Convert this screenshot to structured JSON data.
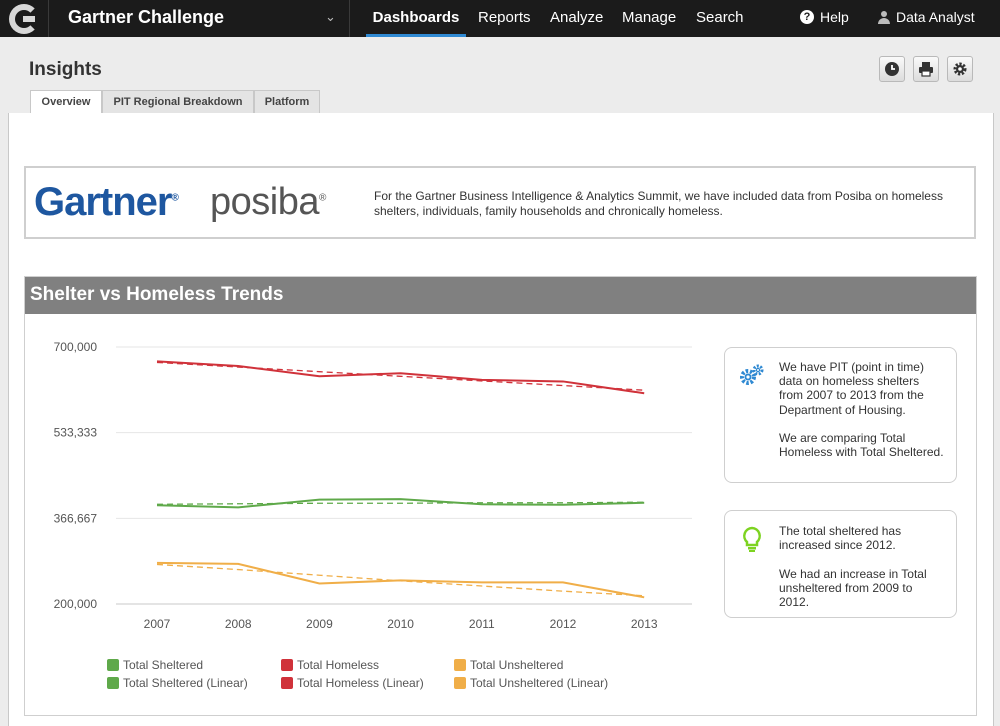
{
  "app": {
    "title": "Gartner Challenge",
    "nav": [
      "Dashboards",
      "Reports",
      "Analyze",
      "Manage",
      "Search"
    ],
    "active_nav": "Dashboards",
    "help_label": "Help",
    "user_label": "Data Analyst",
    "accent_color": "#2f89d2"
  },
  "page": {
    "title": "Insights",
    "toolbar_icons": [
      "clock-icon",
      "print-icon",
      "gear-icon"
    ]
  },
  "tabs": [
    {
      "label": "Overview",
      "active": true
    },
    {
      "label": "PIT Regional Breakdown",
      "active": false
    },
    {
      "label": "Platform",
      "active": false
    }
  ],
  "banner": {
    "gartner_logo": "Gartner",
    "posiba_logo": "posiba",
    "text": "For the Gartner Business Intelligence & Analytics Summit, we have included data from Posiba on homeless shelters, individuals, family households and chronically homeless."
  },
  "panel": {
    "title": "Shelter vs Homeless Trends"
  },
  "notes": [
    {
      "icon": "gears-icon",
      "text": "We have PIT (point in time) data on homeless shelters from 2007 to 2013 from the  Department of Housing.\n\nWe are comparing Total Homeless with Total Sheltered."
    },
    {
      "icon": "lightbulb-icon",
      "text": "The total sheltered has increased since 2012.\n\nWe had an increase in Total unsheltered from 2009 to 2012."
    }
  ],
  "chart_data": {
    "type": "line",
    "title": "Shelter vs Homeless Trends",
    "x": [
      "2007",
      "2008",
      "2009",
      "2010",
      "2011",
      "2012",
      "2013"
    ],
    "y_ticks": [
      "200,000",
      "366,667",
      "533,333",
      "700,000"
    ],
    "ylim": [
      200000,
      700000
    ],
    "grid": true,
    "legend_position": "bottom",
    "series": [
      {
        "name": "Total Sheltered",
        "color": "#5fa94a",
        "dashed": false,
        "values": [
          392000,
          388000,
          403000,
          404000,
          394000,
          393000,
          397000
        ]
      },
      {
        "name": "Total Homeless",
        "color": "#d0323a",
        "dashed": false,
        "values": [
          672000,
          663000,
          643000,
          649000,
          636000,
          633000,
          610000
        ]
      },
      {
        "name": "Total Unsheltered",
        "color": "#f0ae48",
        "dashed": false,
        "values": [
          280000,
          278000,
          240000,
          246000,
          242000,
          242000,
          213000
        ]
      },
      {
        "name": "Total Sheltered (Linear)",
        "color": "#5fa94a",
        "dashed": true,
        "values": [
          394000,
          395000,
          396000,
          396000,
          397000,
          397000,
          398000
        ]
      },
      {
        "name": "Total Homeless (Linear)",
        "color": "#d0323a",
        "dashed": true,
        "values": [
          670000,
          661000,
          652000,
          643000,
          634000,
          625000,
          616000
        ]
      },
      {
        "name": "Total Unsheltered (Linear)",
        "color": "#f0ae48",
        "dashed": true,
        "values": [
          277000,
          267000,
          256000,
          245000,
          235000,
          225000,
          216000
        ]
      }
    ]
  }
}
